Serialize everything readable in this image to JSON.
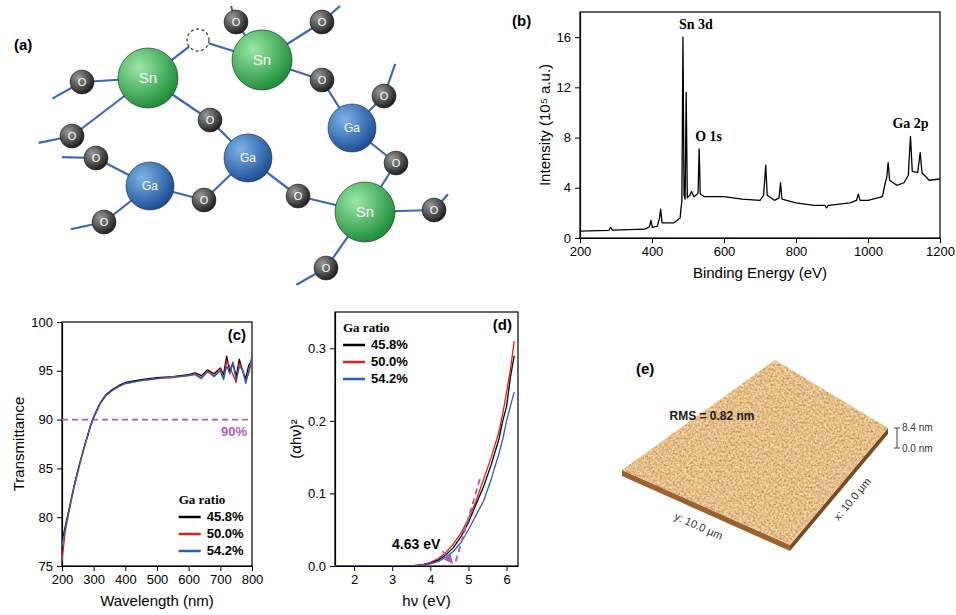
{
  "diagram": {
    "panel": "(a)",
    "nodes": [
      "Sn",
      "Sn",
      "Ga",
      "Ga",
      "Ga",
      "Sn",
      "O",
      "O",
      "O",
      "O",
      "O",
      "O",
      "O",
      "O",
      "O",
      "O",
      "O",
      "O",
      "O",
      "O"
    ]
  },
  "chart_data": [
    {
      "type": "line",
      "panel": "(b)",
      "x_label": "Binding Energy (eV)",
      "y_label": "Intensity (10⁵ a.u.)",
      "xlim": [
        200,
        1200
      ],
      "ylim": [
        0,
        18
      ],
      "xticks": [
        200,
        400,
        600,
        800,
        1000,
        1200
      ],
      "yticks": [
        0,
        4,
        8,
        12,
        16
      ],
      "x": [
        200,
        250,
        280,
        285,
        290,
        380,
        393,
        397,
        401,
        415,
        421,
        424,
        428,
        460,
        478,
        483,
        486,
        489,
        492,
        495,
        498,
        505,
        510,
        516,
        522,
        528,
        531,
        534,
        545,
        600,
        650,
        700,
        710,
        716,
        720,
        740,
        753,
        757,
        761,
        800,
        850,
        880,
        885,
        890,
        950,
        968,
        973,
        978,
        1000,
        1040,
        1048,
        1052,
        1056,
        1060,
        1080,
        1100,
        1112,
        1118,
        1123,
        1138,
        1145,
        1150,
        1170,
        1200
      ],
      "values": [
        0.55,
        0.58,
        0.6,
        0.85,
        0.62,
        0.7,
        0.9,
        1.4,
        0.85,
        0.95,
        1.6,
        2.3,
        1.2,
        1.2,
        1.6,
        3.0,
        16.0,
        3.4,
        3.1,
        11.6,
        3.2,
        3.4,
        3.7,
        3.3,
        3.4,
        3.6,
        7.1,
        3.5,
        3.3,
        3.3,
        3.1,
        3.0,
        3.4,
        5.8,
        3.4,
        3.0,
        3.2,
        4.4,
        3.1,
        2.8,
        2.6,
        2.6,
        2.4,
        2.6,
        2.8,
        3.0,
        3.5,
        3.0,
        3.0,
        3.3,
        4.4,
        4.8,
        6.0,
        4.6,
        4.2,
        4.4,
        5.0,
        8.1,
        5.3,
        5.2,
        6.8,
        5.2,
        4.6,
        4.7
      ],
      "color": "#000000",
      "annotations": [
        {
          "text": "Sn 3d",
          "x": 486,
          "y": 16.0
        },
        {
          "text": "O 1s",
          "x": 531,
          "y": 7.1
        },
        {
          "text": "Ga 2p",
          "x": 1118,
          "y": 8.1
        }
      ]
    },
    {
      "type": "line",
      "panel": "(c)",
      "x_label": "Wavelength (nm)",
      "y_label": "Transmittance",
      "xlim": [
        200,
        800
      ],
      "ylim": [
        75,
        100
      ],
      "xticks": [
        200,
        300,
        400,
        500,
        600,
        700,
        800
      ],
      "yticks": [
        75,
        80,
        85,
        90,
        95,
        100
      ],
      "x": [
        200,
        210,
        220,
        230,
        240,
        250,
        260,
        270,
        280,
        290,
        300,
        320,
        340,
        360,
        380,
        400,
        450,
        500,
        550,
        600,
        620,
        640,
        660,
        680,
        700,
        710,
        720,
        730,
        740,
        750,
        760,
        770,
        780,
        790,
        800
      ],
      "series": [
        {
          "name": "45.8%",
          "color": "#000000",
          "values": [
            77.5,
            79,
            80.5,
            82,
            83.5,
            84.8,
            86,
            87.2,
            88.3,
            89.4,
            90.3,
            91.7,
            92.6,
            93.1,
            93.5,
            93.8,
            94.1,
            94.3,
            94.4,
            94.6,
            94.8,
            94.5,
            95.1,
            94.7,
            95.3,
            94.6,
            96.5,
            94.9,
            95.8,
            94.4,
            96.2,
            95,
            94.2,
            95.6,
            96
          ]
        },
        {
          "name": "50.0%",
          "color": "#e3201b",
          "values": [
            75.5,
            78.5,
            80.2,
            81.8,
            83.3,
            84.6,
            85.9,
            87.1,
            88.2,
            89.3,
            90.2,
            91.6,
            92.5,
            93,
            93.4,
            93.7,
            94,
            94.2,
            94.3,
            94.5,
            94.7,
            94.3,
            95,
            94.5,
            95.2,
            94.2,
            96,
            95.4,
            94.6,
            93.8,
            95.8,
            95.1,
            93.9,
            94.8,
            96.2
          ]
        },
        {
          "name": "54.2%",
          "color": "#2b5fb8",
          "values": [
            77,
            78.8,
            80.4,
            81.9,
            83.4,
            84.7,
            86,
            87.1,
            88.2,
            89.3,
            90.2,
            91.6,
            92.5,
            93,
            93.4,
            93.7,
            94,
            94.2,
            94.4,
            94.5,
            94.6,
            94.2,
            94.9,
            94.4,
            95,
            94.1,
            95.5,
            94.7,
            95.9,
            94,
            95.4,
            95.2,
            93.7,
            95,
            96.6
          ]
        }
      ],
      "legend": "lower right",
      "legend_title": "Ga ratio",
      "hline": {
        "value": 90,
        "label": "90%",
        "color": "#b05cc0"
      }
    },
    {
      "type": "line",
      "panel": "(d)",
      "x_label": "hν (eV)",
      "y_label": "(αhν)²",
      "xlim": [
        1.5,
        6.3
      ],
      "ylim": [
        0,
        0.35
      ],
      "xticks": [
        2,
        3,
        4,
        5,
        6
      ],
      "yticks": [
        {
          "value": 0,
          "label": "0.0"
        },
        0.1,
        0.2,
        0.3
      ],
      "x": [
        1.5,
        2,
        2.5,
        3,
        3.5,
        3.8,
        4.0,
        4.2,
        4.4,
        4.6,
        4.8,
        5.0,
        5.2,
        5.4,
        5.6,
        5.8,
        5.9,
        6.0,
        6.1,
        6.2
      ],
      "series": [
        {
          "name": "45.8%",
          "color": "#000000",
          "values": [
            0,
            0,
            0,
            0,
            0,
            0.002,
            0.004,
            0.008,
            0.015,
            0.025,
            0.04,
            0.06,
            0.085,
            0.11,
            0.14,
            0.175,
            0.2,
            0.22,
            0.26,
            0.29
          ]
        },
        {
          "name": "50.0%",
          "color": "#e3201b",
          "values": [
            0,
            0,
            0,
            0,
            0,
            0.002,
            0.005,
            0.01,
            0.018,
            0.03,
            0.045,
            0.065,
            0.09,
            0.12,
            0.15,
            0.185,
            0.21,
            0.24,
            0.27,
            0.31
          ]
        },
        {
          "name": "54.2%",
          "color": "#2b5fb8",
          "values": [
            0,
            0,
            0,
            0,
            0,
            0.001,
            0.003,
            0.006,
            0.012,
            0.02,
            0.032,
            0.05,
            0.07,
            0.09,
            0.12,
            0.155,
            0.175,
            0.2,
            0.22,
            0.24
          ]
        }
      ],
      "legend": "upper left",
      "legend_title": "Ga ratio",
      "fit": {
        "x": [
          4.3,
          5.3
        ],
        "y": [
          -0.06,
          0.12
        ],
        "color": "#a45cc0"
      },
      "annotations": [
        {
          "text": "4.63 eV",
          "x": 4.63,
          "y": 0
        }
      ]
    }
  ],
  "afm_image": {
    "panel": "(e)",
    "rms_label": "RMS = 0.82 nm",
    "z_max_label": "8.4 nm",
    "z_min_label": "0.0 nm",
    "y_axis_label": "y: 10.0 µm",
    "x_axis_label": "x: 10.0 µm"
  }
}
